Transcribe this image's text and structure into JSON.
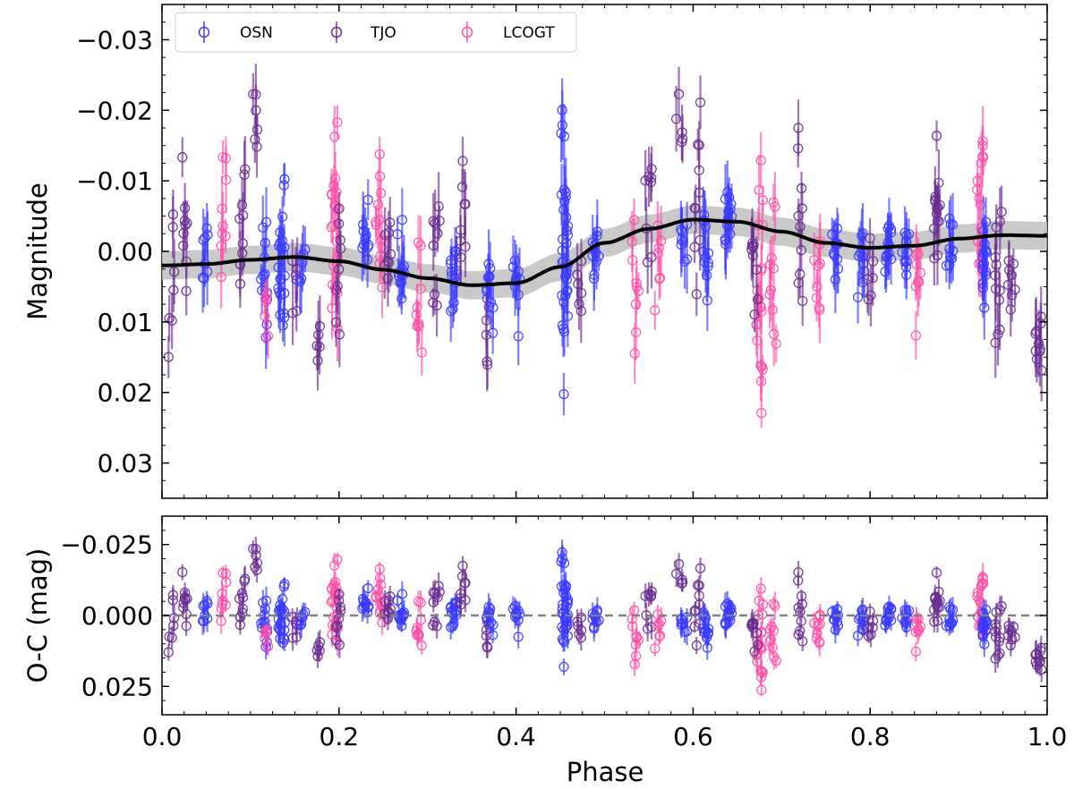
{
  "chart_data": [
    {
      "type": "scatter",
      "panel": "top",
      "title": "",
      "xlabel": "",
      "ylabel": "Magnitude",
      "xlim": [
        0.0,
        1.0
      ],
      "ylim": [
        0.035,
        -0.035
      ],
      "y_inverted": true,
      "yticks": [
        -0.03,
        -0.02,
        -0.01,
        0.0,
        0.01,
        0.02,
        0.03
      ],
      "ytick_labels": [
        "−0.03",
        "−0.02",
        "−0.01",
        "0.00",
        "0.01",
        "0.02",
        "0.03"
      ],
      "legend": {
        "placement": "top-left",
        "entries": [
          "OSN",
          "TJO",
          "LCOGT"
        ]
      },
      "series": [
        {
          "name": "OSN",
          "color": "#3a3aff",
          "marker": "open-circle"
        },
        {
          "name": "TJO",
          "color": "#6a2c91",
          "marker": "open-circle"
        },
        {
          "name": "LCOGT",
          "color": "#ff4fa6",
          "marker": "open-circle"
        }
      ],
      "model": {
        "name": "model",
        "color": "#000000",
        "band_color": "#bfbfbf",
        "band_halfwidth": 0.002,
        "x": [
          0.0,
          0.05,
          0.1,
          0.15,
          0.2,
          0.25,
          0.3,
          0.35,
          0.4,
          0.45,
          0.5,
          0.55,
          0.6,
          0.65,
          0.7,
          0.75,
          0.8,
          0.85,
          0.9,
          0.95,
          1.0
        ],
        "y": [
          0.002,
          0.0018,
          0.0012,
          0.0008,
          0.0014,
          0.0026,
          0.0038,
          0.0048,
          0.0045,
          0.0022,
          -0.0012,
          -0.0032,
          -0.0045,
          -0.0042,
          -0.0028,
          -0.0012,
          -0.0005,
          -0.0008,
          -0.0018,
          -0.0023,
          -0.0022
        ]
      },
      "clusters": [
        {
          "series": "TJO",
          "x": 0.01,
          "center": 0.004,
          "spread": 0.01,
          "n": 7
        },
        {
          "series": "TJO",
          "x": 0.025,
          "center": -0.003,
          "spread": 0.012,
          "n": 9
        },
        {
          "series": "OSN",
          "x": 0.05,
          "center": 0.0,
          "spread": 0.006,
          "n": 8
        },
        {
          "series": "LCOGT",
          "x": 0.07,
          "center": -0.004,
          "spread": 0.011,
          "n": 9
        },
        {
          "series": "TJO",
          "x": 0.09,
          "center": -0.005,
          "spread": 0.007,
          "n": 10
        },
        {
          "series": "TJO",
          "x": 0.105,
          "center": -0.017,
          "spread": 0.009,
          "n": 6
        },
        {
          "series": "OSN",
          "x": 0.115,
          "center": 0.004,
          "spread": 0.008,
          "n": 12
        },
        {
          "series": "LCOGT",
          "x": 0.12,
          "center": 0.01,
          "spread": 0.006,
          "n": 5
        },
        {
          "series": "OSN",
          "x": 0.135,
          "center": 0.002,
          "spread": 0.012,
          "n": 22
        },
        {
          "series": "TJO",
          "x": 0.15,
          "center": 0.004,
          "spread": 0.007,
          "n": 6
        },
        {
          "series": "OSN",
          "x": 0.16,
          "center": 0.001,
          "spread": 0.005,
          "n": 5
        },
        {
          "series": "TJO",
          "x": 0.175,
          "center": 0.012,
          "spread": 0.006,
          "n": 5
        },
        {
          "series": "LCOGT",
          "x": 0.195,
          "center": -0.002,
          "spread": 0.014,
          "n": 22
        },
        {
          "series": "TJO",
          "x": 0.2,
          "center": 0.005,
          "spread": 0.009,
          "n": 9
        },
        {
          "series": "OSN",
          "x": 0.23,
          "center": -0.002,
          "spread": 0.005,
          "n": 10
        },
        {
          "series": "LCOGT",
          "x": 0.245,
          "center": -0.004,
          "spread": 0.008,
          "n": 12
        },
        {
          "series": "TJO",
          "x": 0.255,
          "center": 0.001,
          "spread": 0.006,
          "n": 8
        },
        {
          "series": "OSN",
          "x": 0.27,
          "center": 0.003,
          "spread": 0.006,
          "n": 12
        },
        {
          "series": "LCOGT",
          "x": 0.29,
          "center": 0.006,
          "spread": 0.008,
          "n": 10
        },
        {
          "series": "TJO",
          "x": 0.31,
          "center": 0.0,
          "spread": 0.008,
          "n": 9
        },
        {
          "series": "OSN",
          "x": 0.33,
          "center": 0.004,
          "spread": 0.007,
          "n": 14
        },
        {
          "series": "TJO",
          "x": 0.34,
          "center": -0.004,
          "spread": 0.01,
          "n": 8
        },
        {
          "series": "OSN",
          "x": 0.37,
          "center": 0.005,
          "spread": 0.006,
          "n": 12
        },
        {
          "series": "TJO",
          "x": 0.365,
          "center": 0.012,
          "spread": 0.006,
          "n": 4
        },
        {
          "series": "OSN",
          "x": 0.4,
          "center": 0.004,
          "spread": 0.006,
          "n": 10
        },
        {
          "series": "OSN",
          "x": 0.455,
          "center": 0.002,
          "spread": 0.016,
          "n": 35
        },
        {
          "series": "TJO",
          "x": 0.47,
          "center": 0.005,
          "spread": 0.005,
          "n": 6
        },
        {
          "series": "OSN",
          "x": 0.49,
          "center": 0.0,
          "spread": 0.006,
          "n": 10
        },
        {
          "series": "LCOGT",
          "x": 0.535,
          "center": 0.004,
          "spread": 0.009,
          "n": 9
        },
        {
          "series": "TJO",
          "x": 0.55,
          "center": -0.008,
          "spread": 0.01,
          "n": 8
        },
        {
          "series": "LCOGT",
          "x": 0.56,
          "center": 0.005,
          "spread": 0.012,
          "n": 7
        },
        {
          "series": "OSN",
          "x": 0.59,
          "center": -0.001,
          "spread": 0.005,
          "n": 8
        },
        {
          "series": "TJO",
          "x": 0.585,
          "center": -0.018,
          "spread": 0.007,
          "n": 5
        },
        {
          "series": "TJO",
          "x": 0.605,
          "center": -0.006,
          "spread": 0.012,
          "n": 10
        },
        {
          "series": "OSN",
          "x": 0.615,
          "center": -0.001,
          "spread": 0.006,
          "n": 12
        },
        {
          "series": "OSN",
          "x": 0.64,
          "center": -0.004,
          "spread": 0.005,
          "n": 14
        },
        {
          "series": "LCOGT",
          "x": 0.675,
          "center": 0.006,
          "spread": 0.016,
          "n": 20
        },
        {
          "series": "TJO",
          "x": 0.67,
          "center": -0.002,
          "spread": 0.011,
          "n": 9
        },
        {
          "series": "LCOGT",
          "x": 0.69,
          "center": 0.002,
          "spread": 0.016,
          "n": 10
        },
        {
          "series": "TJO",
          "x": 0.72,
          "center": -0.006,
          "spread": 0.011,
          "n": 10
        },
        {
          "series": "LCOGT",
          "x": 0.74,
          "center": 0.002,
          "spread": 0.01,
          "n": 9
        },
        {
          "series": "OSN",
          "x": 0.76,
          "center": 0.0,
          "spread": 0.005,
          "n": 10
        },
        {
          "series": "OSN",
          "x": 0.79,
          "center": 0.001,
          "spread": 0.005,
          "n": 10
        },
        {
          "series": "TJO",
          "x": 0.8,
          "center": 0.003,
          "spread": 0.007,
          "n": 6
        },
        {
          "series": "OSN",
          "x": 0.82,
          "center": -0.002,
          "spread": 0.004,
          "n": 12
        },
        {
          "series": "OSN",
          "x": 0.84,
          "center": 0.0,
          "spread": 0.004,
          "n": 10
        },
        {
          "series": "LCOGT",
          "x": 0.855,
          "center": 0.005,
          "spread": 0.008,
          "n": 8
        },
        {
          "series": "TJO",
          "x": 0.875,
          "center": -0.006,
          "spread": 0.012,
          "n": 14
        },
        {
          "series": "OSN",
          "x": 0.89,
          "center": -0.001,
          "spread": 0.004,
          "n": 10
        },
        {
          "series": "LCOGT",
          "x": 0.925,
          "center": -0.004,
          "spread": 0.012,
          "n": 16
        },
        {
          "series": "OSN",
          "x": 0.93,
          "center": 0.002,
          "spread": 0.005,
          "n": 16
        },
        {
          "series": "TJO",
          "x": 0.945,
          "center": 0.004,
          "spread": 0.01,
          "n": 12
        },
        {
          "series": "TJO",
          "x": 0.96,
          "center": 0.003,
          "spread": 0.007,
          "n": 8
        },
        {
          "series": "TJO",
          "x": 0.99,
          "center": 0.014,
          "spread": 0.005,
          "n": 10
        }
      ]
    },
    {
      "type": "scatter",
      "panel": "bottom",
      "xlabel": "Phase",
      "ylabel": "O-C (mag)",
      "xlim": [
        0.0,
        1.0
      ],
      "ylim": [
        0.035,
        -0.035
      ],
      "y_inverted": true,
      "xticks": [
        0.0,
        0.2,
        0.4,
        0.6,
        0.8,
        1.0
      ],
      "xtick_labels": [
        "0.0",
        "0.2",
        "0.4",
        "0.6",
        "0.8",
        "1.0"
      ],
      "yticks": [
        -0.025,
        0.0,
        0.025
      ],
      "ytick_labels": [
        "−0.025",
        "0.000",
        "0.025"
      ],
      "reference_line": {
        "y": 0.0,
        "style": "dashed",
        "color": "#808080"
      }
    }
  ]
}
